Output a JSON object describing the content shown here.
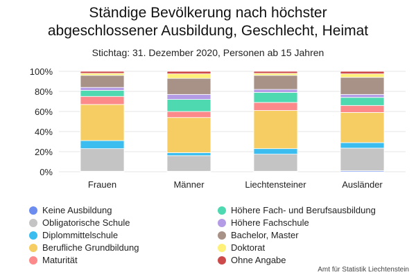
{
  "title_line1": "Ständige Bevölkerung nach höchster",
  "title_line2": "abgeschlossener Ausbildung, Geschlecht, Heimat",
  "subtitle": "Stichtag: 31. Dezember 2020, Personen ab 15 Jahren",
  "source": "Amt für Statistik Liechtenstein",
  "chart_data": {
    "type": "bar",
    "stacked": true,
    "percent": true,
    "categories": [
      "Frauen",
      "Männer",
      "Liechtensteiner",
      "Ausländer"
    ],
    "y_ticks": [
      "0%",
      "20%",
      "40%",
      "60%",
      "80%",
      "100%"
    ],
    "ylim": [
      0,
      100
    ],
    "grid": true,
    "legend_position": "bottom",
    "series": [
      {
        "name": "Keine Ausbildung",
        "color": "#6c8cf0",
        "values": [
          0.5,
          0.5,
          0.5,
          1.0
        ]
      },
      {
        "name": "Obligatorische Schule",
        "color": "#c4c4c4",
        "values": [
          22.5,
          15.5,
          17.0,
          22.5
        ]
      },
      {
        "name": "Diplommittelschule",
        "color": "#3bbdf0",
        "values": [
          8.0,
          3.0,
          5.5,
          5.5
        ]
      },
      {
        "name": "Berufliche Grundbildung",
        "color": "#f5cd62",
        "values": [
          36.0,
          35.0,
          38.0,
          30.0
        ]
      },
      {
        "name": "Maturität",
        "color": "#fc8a8a",
        "values": [
          8.0,
          6.0,
          8.0,
          7.0
        ]
      },
      {
        "name": "Höhere Fach- und Berufsausbildung",
        "color": "#4ed9b0",
        "values": [
          6.0,
          12.0,
          10.0,
          8.0
        ]
      },
      {
        "name": "Höhere Fachschule",
        "color": "#b49be6",
        "values": [
          3.0,
          5.0,
          3.0,
          3.0
        ]
      },
      {
        "name": "Bachelor, Master",
        "color": "#a89288",
        "values": [
          12.0,
          16.0,
          14.0,
          17.0
        ]
      },
      {
        "name": "Doktorat",
        "color": "#fff07a",
        "values": [
          2.0,
          4.5,
          2.0,
          3.5
        ]
      },
      {
        "name": "Ohne Angabe",
        "color": "#cc4a4a",
        "values": [
          2.0,
          2.5,
          2.0,
          2.5
        ]
      }
    ]
  }
}
